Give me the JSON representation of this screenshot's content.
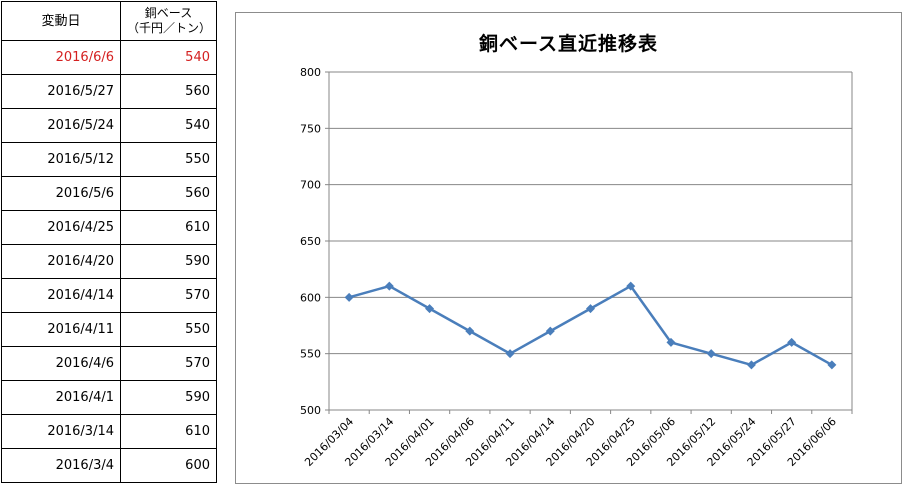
{
  "table": {
    "headers": {
      "date": "変動日",
      "price_line1": "銅ベース",
      "price_line2": "（千円／トン）"
    },
    "rows": [
      {
        "date": "2016/6/6",
        "price": "540",
        "highlight": true
      },
      {
        "date": "2016/5/27",
        "price": "560"
      },
      {
        "date": "2016/5/24",
        "price": "540"
      },
      {
        "date": "2016/5/12",
        "price": "550"
      },
      {
        "date": "2016/5/6",
        "price": "560"
      },
      {
        "date": "2016/4/25",
        "price": "610"
      },
      {
        "date": "2016/4/20",
        "price": "590"
      },
      {
        "date": "2016/4/14",
        "price": "570"
      },
      {
        "date": "2016/4/11",
        "price": "550"
      },
      {
        "date": "2016/4/6",
        "price": "570"
      },
      {
        "date": "2016/4/1",
        "price": "590"
      },
      {
        "date": "2016/3/14",
        "price": "610"
      },
      {
        "date": "2016/3/4",
        "price": "600"
      }
    ],
    "highlight_color": "#d42020"
  },
  "chart_data": {
    "type": "line",
    "title": "銅ベース直近推移表",
    "xlabel": "",
    "ylabel": "",
    "categories": [
      "2016/03/04",
      "2016/03/14",
      "2016/04/01",
      "2016/04/06",
      "2016/04/11",
      "2016/04/14",
      "2016/04/20",
      "2016/04/25",
      "2016/05/06",
      "2016/05/12",
      "2016/05/24",
      "2016/05/27",
      "2016/06/06"
    ],
    "series": [
      {
        "values": [
          600,
          610,
          590,
          570,
          550,
          570,
          590,
          610,
          560,
          550,
          540,
          560,
          540
        ],
        "color": "#4a7ebb",
        "marker": "diamond"
      }
    ],
    "ylim": [
      500,
      800
    ],
    "yticks": [
      500,
      550,
      600,
      650,
      700,
      750,
      800
    ],
    "grid": "horizontal",
    "legend": "none"
  }
}
